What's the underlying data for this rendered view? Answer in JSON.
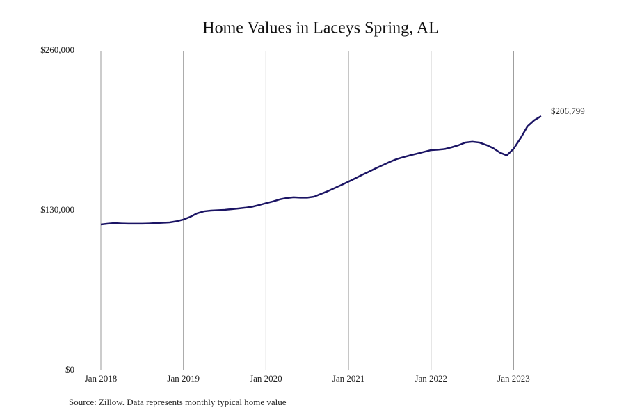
{
  "chart_data": {
    "type": "line",
    "title": "Home Values in Laceys Spring, AL",
    "source": "Source: Zillow. Data represents monthly typical home value",
    "x": [
      "2018-01",
      "2018-02",
      "2018-03",
      "2018-04",
      "2018-05",
      "2018-06",
      "2018-07",
      "2018-08",
      "2018-09",
      "2018-10",
      "2018-11",
      "2018-12",
      "2019-01",
      "2019-02",
      "2019-03",
      "2019-04",
      "2019-05",
      "2019-06",
      "2019-07",
      "2019-08",
      "2019-09",
      "2019-10",
      "2019-11",
      "2019-12",
      "2020-01",
      "2020-02",
      "2020-03",
      "2020-04",
      "2020-05",
      "2020-06",
      "2020-07",
      "2020-08",
      "2020-09",
      "2020-10",
      "2020-11",
      "2020-12",
      "2021-01",
      "2021-02",
      "2021-03",
      "2021-04",
      "2021-05",
      "2021-06",
      "2021-07",
      "2021-08",
      "2021-09",
      "2021-10",
      "2021-11",
      "2021-12",
      "2022-01",
      "2022-02",
      "2022-03",
      "2022-04",
      "2022-05",
      "2022-06",
      "2022-07",
      "2022-08",
      "2022-09",
      "2022-10",
      "2022-11",
      "2022-12",
      "2023-01",
      "2023-02",
      "2023-03",
      "2023-04",
      "2023-05"
    ],
    "series": [
      {
        "name": "Home value",
        "color": "#1b1464",
        "values": [
          118700,
          119300,
          119800,
          119500,
          119300,
          119300,
          119300,
          119500,
          119800,
          120100,
          120400,
          121300,
          122700,
          124900,
          127800,
          129400,
          130000,
          130300,
          130600,
          131100,
          131700,
          132300,
          133100,
          134500,
          136000,
          137400,
          139100,
          140200,
          140800,
          140500,
          140500,
          141300,
          143600,
          145800,
          148400,
          150900,
          153500,
          156300,
          159100,
          161700,
          164500,
          167000,
          169600,
          171900,
          173500,
          175000,
          176400,
          177800,
          179200,
          179500,
          180100,
          181500,
          183200,
          185400,
          186000,
          185400,
          183400,
          180900,
          177200,
          174900,
          180300,
          188800,
          198400,
          203500,
          206799
        ],
        "value_labels": [
          null,
          null,
          null,
          null,
          null,
          null,
          null,
          null,
          null,
          null,
          null,
          null,
          null,
          null,
          null,
          null,
          null,
          null,
          null,
          null,
          null,
          null,
          null,
          null,
          null,
          null,
          null,
          null,
          null,
          null,
          null,
          null,
          null,
          null,
          null,
          null,
          null,
          null,
          null,
          null,
          null,
          null,
          null,
          null,
          null,
          null,
          null,
          null,
          null,
          null,
          null,
          null,
          null,
          null,
          null,
          null,
          null,
          null,
          null,
          null,
          null,
          null,
          null,
          null,
          "$206,799"
        ]
      }
    ],
    "xlim": [
      "2018-01",
      "2023-05"
    ],
    "xticks": [
      {
        "value": "2018-01",
        "label": "Jan 2018"
      },
      {
        "value": "2019-01",
        "label": "Jan 2019"
      },
      {
        "value": "2020-01",
        "label": "Jan 2020"
      },
      {
        "value": "2021-01",
        "label": "Jan 2021"
      },
      {
        "value": "2022-01",
        "label": "Jan 2022"
      },
      {
        "value": "2023-01",
        "label": "Jan 2023"
      }
    ],
    "ylim": [
      0,
      260000
    ],
    "yticks": [
      {
        "value": 0,
        "label": "$0"
      },
      {
        "value": 130000,
        "label": "$130,000"
      },
      {
        "value": 260000,
        "label": "$260,000"
      }
    ],
    "grid": "x"
  }
}
